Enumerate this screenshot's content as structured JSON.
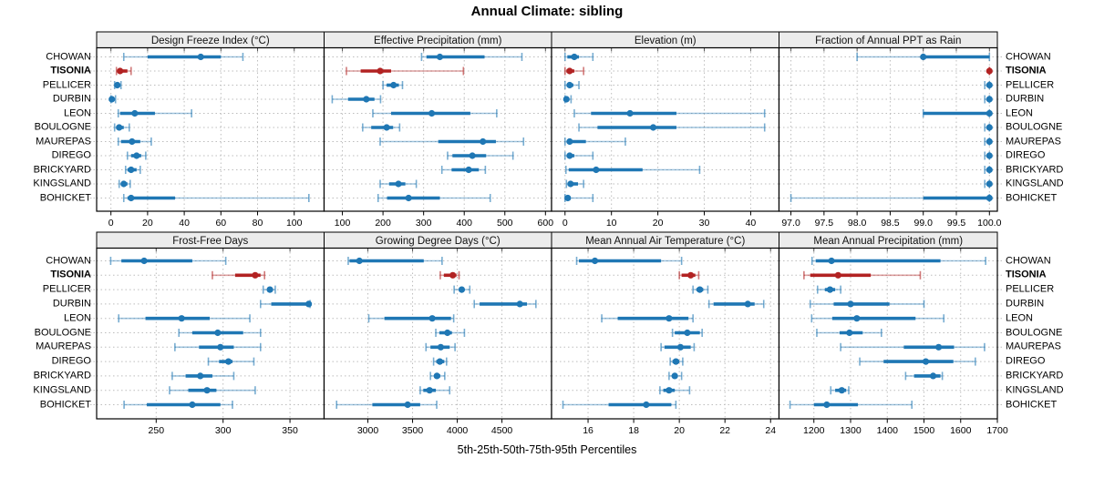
{
  "title": "Annual Climate: sibling",
  "caption": "5th-25th-50th-75th-95th Percentiles",
  "colors": {
    "series_blue": "#1f77b4",
    "highlight_red": "#b22222",
    "grid": "#bdbdbd",
    "strip_bg": "#ececec",
    "panel_border": "#000000"
  },
  "stations": [
    "CHOWAN",
    "TISONIA",
    "PELLICER",
    "DURBIN",
    "LEON",
    "BOULOGNE",
    "MAUREPAS",
    "DIREGO",
    "BRICKYARD",
    "KINGSLAND",
    "BOHICKET"
  ],
  "highlight_station": "TISONIA",
  "chart_data": {
    "type": "dotplot",
    "note": "trellis dot plot; each row shows 5th-25th-50th-75th-95th percentile whiskers per station",
    "percentiles": [
      5,
      25,
      50,
      75,
      95
    ],
    "xlabel": "5th-25th-50th-75th-95th Percentiles",
    "grid": "dotted",
    "panels": [
      {
        "title": "Design Freeze Index (°C)",
        "row": 0,
        "col": 0,
        "xlim": [
          -7.8,
          116.3
        ],
        "ticks": [
          0,
          20,
          40,
          60,
          80,
          100
        ],
        "tick_labels": [
          "0",
          "20",
          "40",
          "60",
          "80",
          "100"
        ],
        "values": [
          [
            7,
            20,
            49,
            60,
            72
          ],
          [
            3,
            4,
            5,
            9,
            11
          ],
          [
            2,
            2.5,
            3.5,
            4.5,
            5.5
          ],
          [
            0,
            0.2,
            0.5,
            1.5,
            2.5
          ],
          [
            4,
            5,
            13,
            24,
            44
          ],
          [
            2,
            3,
            4.5,
            7,
            10
          ],
          [
            4,
            5.5,
            11.5,
            16,
            22
          ],
          [
            9,
            11,
            14,
            16.5,
            19
          ],
          [
            8,
            9,
            11,
            14,
            16
          ],
          [
            4.5,
            5.5,
            7,
            9,
            10.5
          ],
          [
            7,
            9,
            11,
            35,
            108
          ]
        ]
      },
      {
        "title": "Effective Precipitation (mm)",
        "row": 0,
        "col": 1,
        "xlim": [
          55,
          615
        ],
        "ticks": [
          100,
          200,
          300,
          400,
          500,
          600
        ],
        "tick_labels": [
          "100",
          "200",
          "300",
          "400",
          "500",
          "600"
        ],
        "values": [
          [
            295,
            307,
            340,
            450,
            542
          ],
          [
            110,
            145,
            193,
            220,
            398
          ],
          [
            200,
            209,
            226,
            239,
            248
          ],
          [
            75,
            114,
            159,
            179,
            194
          ],
          [
            175,
            220,
            320,
            415,
            480
          ],
          [
            150,
            171,
            209,
            225,
            241
          ],
          [
            193,
            336,
            446,
            478,
            546
          ],
          [
            359,
            371,
            420,
            454,
            520
          ],
          [
            345,
            369,
            411,
            436,
            452
          ],
          [
            193,
            215,
            238,
            255,
            282
          ],
          [
            188,
            210,
            263,
            340,
            464
          ]
        ]
      },
      {
        "title": "Elevation (m)",
        "row": 0,
        "col": 2,
        "xlim": [
          -2.9,
          46.1
        ],
        "ticks": [
          0,
          10,
          20,
          30,
          40
        ],
        "tick_labels": [
          "0",
          "10",
          "20",
          "30",
          "40"
        ],
        "values": [
          [
            0,
            0.5,
            2,
            3,
            6
          ],
          [
            0,
            0.3,
            1,
            2,
            4
          ],
          [
            0,
            0.5,
            1,
            1.8,
            3
          ],
          [
            0,
            0.1,
            0.3,
            0.7,
            1.3
          ],
          [
            2,
            5.6,
            14,
            24,
            43
          ],
          [
            3,
            7,
            19,
            24,
            43
          ],
          [
            0,
            0.5,
            1,
            4.5,
            13
          ],
          [
            0,
            0.5,
            1,
            2,
            6
          ],
          [
            0.2,
            0.8,
            6.7,
            16.7,
            29
          ],
          [
            0.3,
            0.6,
            1.2,
            2.8,
            4
          ],
          [
            0,
            0.3,
            0.6,
            1.2,
            6
          ]
        ]
      },
      {
        "title": "Fraction of Annual PPT as Rain",
        "row": 0,
        "col": 3,
        "xlim": [
          96.82,
          100.12
        ],
        "ticks": [
          97.0,
          97.5,
          98.0,
          98.5,
          99.0,
          99.5,
          100.0
        ],
        "tick_labels": [
          "97.0",
          "97.5",
          "98.0",
          "98.5",
          "99.0",
          "99.5",
          "100.0"
        ],
        "values": [
          [
            98,
            99,
            99,
            100,
            100
          ],
          [
            100,
            100,
            100,
            100,
            100
          ],
          [
            99.93,
            99.97,
            100,
            100,
            100
          ],
          [
            99.93,
            99.97,
            100,
            100,
            100
          ],
          [
            99,
            99,
            100,
            100,
            100
          ],
          [
            99.93,
            99.97,
            100,
            100,
            100
          ],
          [
            99.93,
            99.97,
            100,
            100,
            100
          ],
          [
            99.93,
            99.97,
            100,
            100,
            100
          ],
          [
            99.93,
            99.97,
            100,
            100,
            100
          ],
          [
            99.93,
            99.97,
            100,
            100,
            100
          ],
          [
            97,
            99,
            100,
            100,
            100
          ]
        ]
      },
      {
        "title": "Frost-Free Days",
        "row": 1,
        "col": 0,
        "xlim": [
          205.5,
          375.5
        ],
        "ticks": [
          250,
          300,
          350
        ],
        "tick_labels": [
          "250",
          "300",
          "350"
        ],
        "values": [
          [
            216,
            224,
            241,
            277,
            302
          ],
          [
            292,
            309,
            324,
            328,
            331
          ],
          [
            330,
            333,
            335,
            337,
            339
          ],
          [
            328,
            336,
            364,
            365,
            365
          ],
          [
            222,
            242,
            269,
            290,
            320
          ],
          [
            267,
            277,
            296,
            315,
            328
          ],
          [
            264,
            282,
            298,
            308,
            328
          ],
          [
            289,
            297,
            304,
            307,
            323
          ],
          [
            262,
            272,
            283,
            292,
            308
          ],
          [
            260,
            274,
            288,
            295,
            324
          ],
          [
            226,
            243,
            277,
            298,
            307
          ]
        ]
      },
      {
        "title": "Growing Degree Days (°C)",
        "row": 1,
        "col": 1,
        "xlim": [
          2510,
          5055
        ],
        "ticks": [
          3000,
          3500,
          4000,
          4500
        ],
        "tick_labels": [
          "3000",
          "3500",
          "4000",
          "4500"
        ],
        "values": [
          [
            2780,
            2795,
            2905,
            3625,
            3830
          ],
          [
            3810,
            3850,
            3950,
            3990,
            4020
          ],
          [
            3965,
            4020,
            4050,
            4080,
            4140
          ],
          [
            4190,
            4250,
            4700,
            4780,
            4880
          ],
          [
            3010,
            3185,
            3720,
            3930,
            3960
          ],
          [
            3760,
            3800,
            3890,
            3940,
            4080
          ],
          [
            3650,
            3700,
            3815,
            3915,
            3975
          ],
          [
            3735,
            3765,
            3805,
            3855,
            3880
          ],
          [
            3700,
            3740,
            3772,
            3810,
            3860
          ],
          [
            3585,
            3620,
            3690,
            3760,
            3915
          ],
          [
            2650,
            3050,
            3445,
            3585,
            3770
          ]
        ]
      },
      {
        "title": "Mean Annual Air Temperature (°C)",
        "row": 1,
        "col": 2,
        "xlim": [
          14.4,
          24.37
        ],
        "ticks": [
          16,
          18,
          20,
          22,
          24
        ],
        "tick_labels": [
          "16",
          "18",
          "20",
          "22",
          "24"
        ],
        "values": [
          [
            15.5,
            15.6,
            16.3,
            19.2,
            20.1
          ],
          [
            20.0,
            20.1,
            20.5,
            20.7,
            20.85
          ],
          [
            20.6,
            20.75,
            20.9,
            21.05,
            21.25
          ],
          [
            21.3,
            21.5,
            23.0,
            23.3,
            23.7
          ],
          [
            16.6,
            17.3,
            19.55,
            20.4,
            20.6
          ],
          [
            19.7,
            19.8,
            20.35,
            20.9,
            21.0
          ],
          [
            19.2,
            19.35,
            20.05,
            20.5,
            20.65
          ],
          [
            19.6,
            19.7,
            19.85,
            20.0,
            20.15
          ],
          [
            19.55,
            19.7,
            19.8,
            19.9,
            20.1
          ],
          [
            19.15,
            19.3,
            19.55,
            19.8,
            20.45
          ],
          [
            14.9,
            16.9,
            18.55,
            19.65,
            19.85
          ]
        ]
      },
      {
        "title": "Mean Annual Precipitation (mm)",
        "row": 1,
        "col": 3,
        "xlim": [
          1105,
          1700
        ],
        "ticks": [
          1200,
          1300,
          1400,
          1500,
          1600,
          1700
        ],
        "tick_labels": [
          "1200",
          "1300",
          "1400",
          "1500",
          "1600",
          "1700"
        ],
        "values": [
          [
            1195,
            1205,
            1248,
            1545,
            1668
          ],
          [
            1173,
            1190,
            1266,
            1355,
            1490
          ],
          [
            1210,
            1230,
            1244,
            1258,
            1273
          ],
          [
            1190,
            1254,
            1300,
            1406,
            1500
          ],
          [
            1194,
            1250,
            1317,
            1477,
            1554
          ],
          [
            1208,
            1270,
            1297,
            1333,
            1384
          ],
          [
            1273,
            1445,
            1540,
            1582,
            1665
          ],
          [
            1325,
            1390,
            1505,
            1580,
            1640
          ],
          [
            1450,
            1473,
            1525,
            1545,
            1550
          ],
          [
            1246,
            1258,
            1276,
            1288,
            1295
          ],
          [
            1135,
            1200,
            1235,
            1320,
            1467
          ]
        ]
      }
    ]
  }
}
